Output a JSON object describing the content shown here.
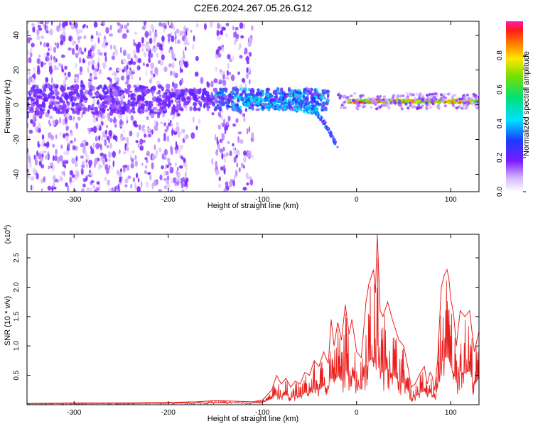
{
  "title": "C2E6.2024.267.05.26.G12",
  "colors": {
    "snr_line": "#e8201e",
    "spectrogram": "#7a1cff",
    "ridge_low": "#00e0ff",
    "ridge_high": "#ff2a2a"
  },
  "chart_data": [
    {
      "type": "heatmap",
      "xlabel": "Height of straight line (km)",
      "ylabel": "Frequency (Hz)",
      "xlim": [
        -350,
        130
      ],
      "ylim": [
        -50,
        48
      ],
      "xticks": [
        -300,
        -200,
        -100,
        0,
        100
      ],
      "yticks": [
        -40,
        -20,
        0,
        20,
        40
      ],
      "colorbar": {
        "label": "Normalized spectral amplitude",
        "range": [
          0,
          1
        ],
        "ticks": [
          0.0,
          0.2,
          0.4,
          0.6,
          0.8
        ],
        "tick_labels": [
          "0.0",
          "0.2",
          "0.4",
          "0.6",
          "0.8"
        ]
      },
      "grid": false,
      "note": "amplitude field: broad low-level scatter for heights below about -120 km, concentrated band near 0 Hz from -200 to -40 km, strong narrow ridge near +2 Hz from -10 to 130 km, a descending branch from -60 km to about -25 Hz at -20 km"
    },
    {
      "type": "line",
      "xlabel": "Height of straight line (km)",
      "ylabel": "SNR (10 * v/v)",
      "y_multiplier_label": "(x10",
      "y_multiplier_exp": "4",
      "xlim": [
        -350,
        130
      ],
      "ylim": [
        0,
        2.9
      ],
      "xticks": [
        -300,
        -200,
        -100,
        0,
        100
      ],
      "yticks": [
        0.5,
        1.0,
        1.5,
        2.0,
        2.5
      ],
      "ytick_labels": [
        "0.5",
        "1.0",
        "1.5",
        "2.0",
        "2.5"
      ],
      "grid": false,
      "series": [
        {
          "x": [
            -350,
            -300,
            -250,
            -200,
            -170,
            -150,
            -130,
            -110,
            -100,
            -90,
            -85,
            -80,
            -75,
            -70,
            -65,
            -60,
            -55,
            -50,
            -45,
            -40,
            -35,
            -30,
            -27,
            -24,
            -20,
            -16,
            -12,
            -8,
            -5,
            0,
            5,
            10,
            13,
            18,
            20,
            22,
            25,
            28,
            33,
            38,
            45,
            50,
            55,
            58,
            62,
            68,
            72,
            75,
            78,
            80,
            83,
            86,
            90,
            93,
            96,
            98,
            100,
            103,
            106,
            110,
            115,
            120,
            125,
            130
          ],
          "y": [
            0.02,
            0.03,
            0.03,
            0.04,
            0.05,
            0.07,
            0.06,
            0.05,
            0.08,
            0.25,
            0.5,
            0.35,
            0.45,
            0.3,
            0.4,
            0.35,
            0.55,
            0.5,
            0.75,
            0.65,
            0.9,
            0.7,
            1.45,
            1.0,
            1.4,
            1.1,
            1.7,
            1.2,
            1.45,
            0.9,
            0.8,
            1.75,
            2.05,
            2.3,
            1.9,
            2.9,
            1.6,
            1.5,
            1.75,
            1.45,
            1.1,
            1.0,
            0.6,
            0.3,
            0.35,
            0.55,
            0.65,
            0.35,
            0.55,
            0.5,
            0.25,
            0.75,
            2.0,
            2.2,
            2.3,
            2.15,
            1.8,
            1.55,
            1.0,
            1.6,
            1.5,
            1.6,
            0.9,
            1.25
          ]
        }
      ]
    }
  ]
}
